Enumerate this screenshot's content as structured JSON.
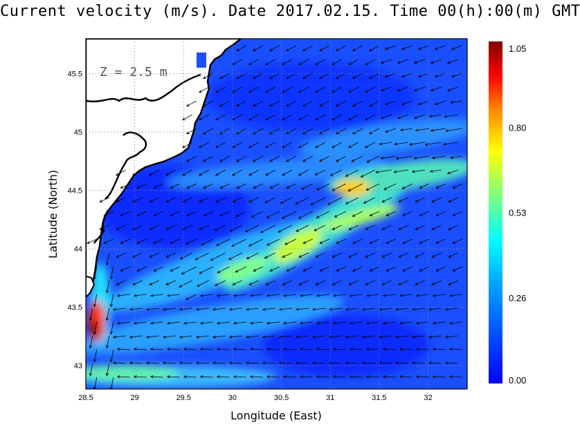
{
  "title": "Current velocity (m/s). Date 2017.02.15. Time 00(h):00(m) GMT",
  "depth_label": "Z = 2.5 m",
  "axes": {
    "xlabel": "Longitude (East)",
    "ylabel": "Latitude (North)",
    "xlim": [
      28.5,
      32.4
    ],
    "ylim": [
      42.8,
      45.8
    ],
    "xticks": [
      "28.5",
      "29",
      "29.5",
      "30",
      "30.5",
      "31",
      "31.5",
      "32"
    ],
    "yticks": [
      "43",
      "43.5",
      "44",
      "44.5",
      "45",
      "45.5"
    ],
    "grid": "dotted"
  },
  "colorbar": {
    "min": 0.0,
    "max": 1.05,
    "labels": [
      "1.05",
      "0.80",
      "0.53",
      "0.26",
      "0.00"
    ],
    "colormap": "jet",
    "colors": [
      "#0000ff",
      "#0066ff",
      "#00ccff",
      "#7fff7f",
      "#ffff00",
      "#ff6600",
      "#800000"
    ]
  },
  "colors": {
    "land": "#ffffff",
    "coastline": "#000000",
    "arrows": "#000000",
    "background_sea": "#1a4fff"
  }
}
